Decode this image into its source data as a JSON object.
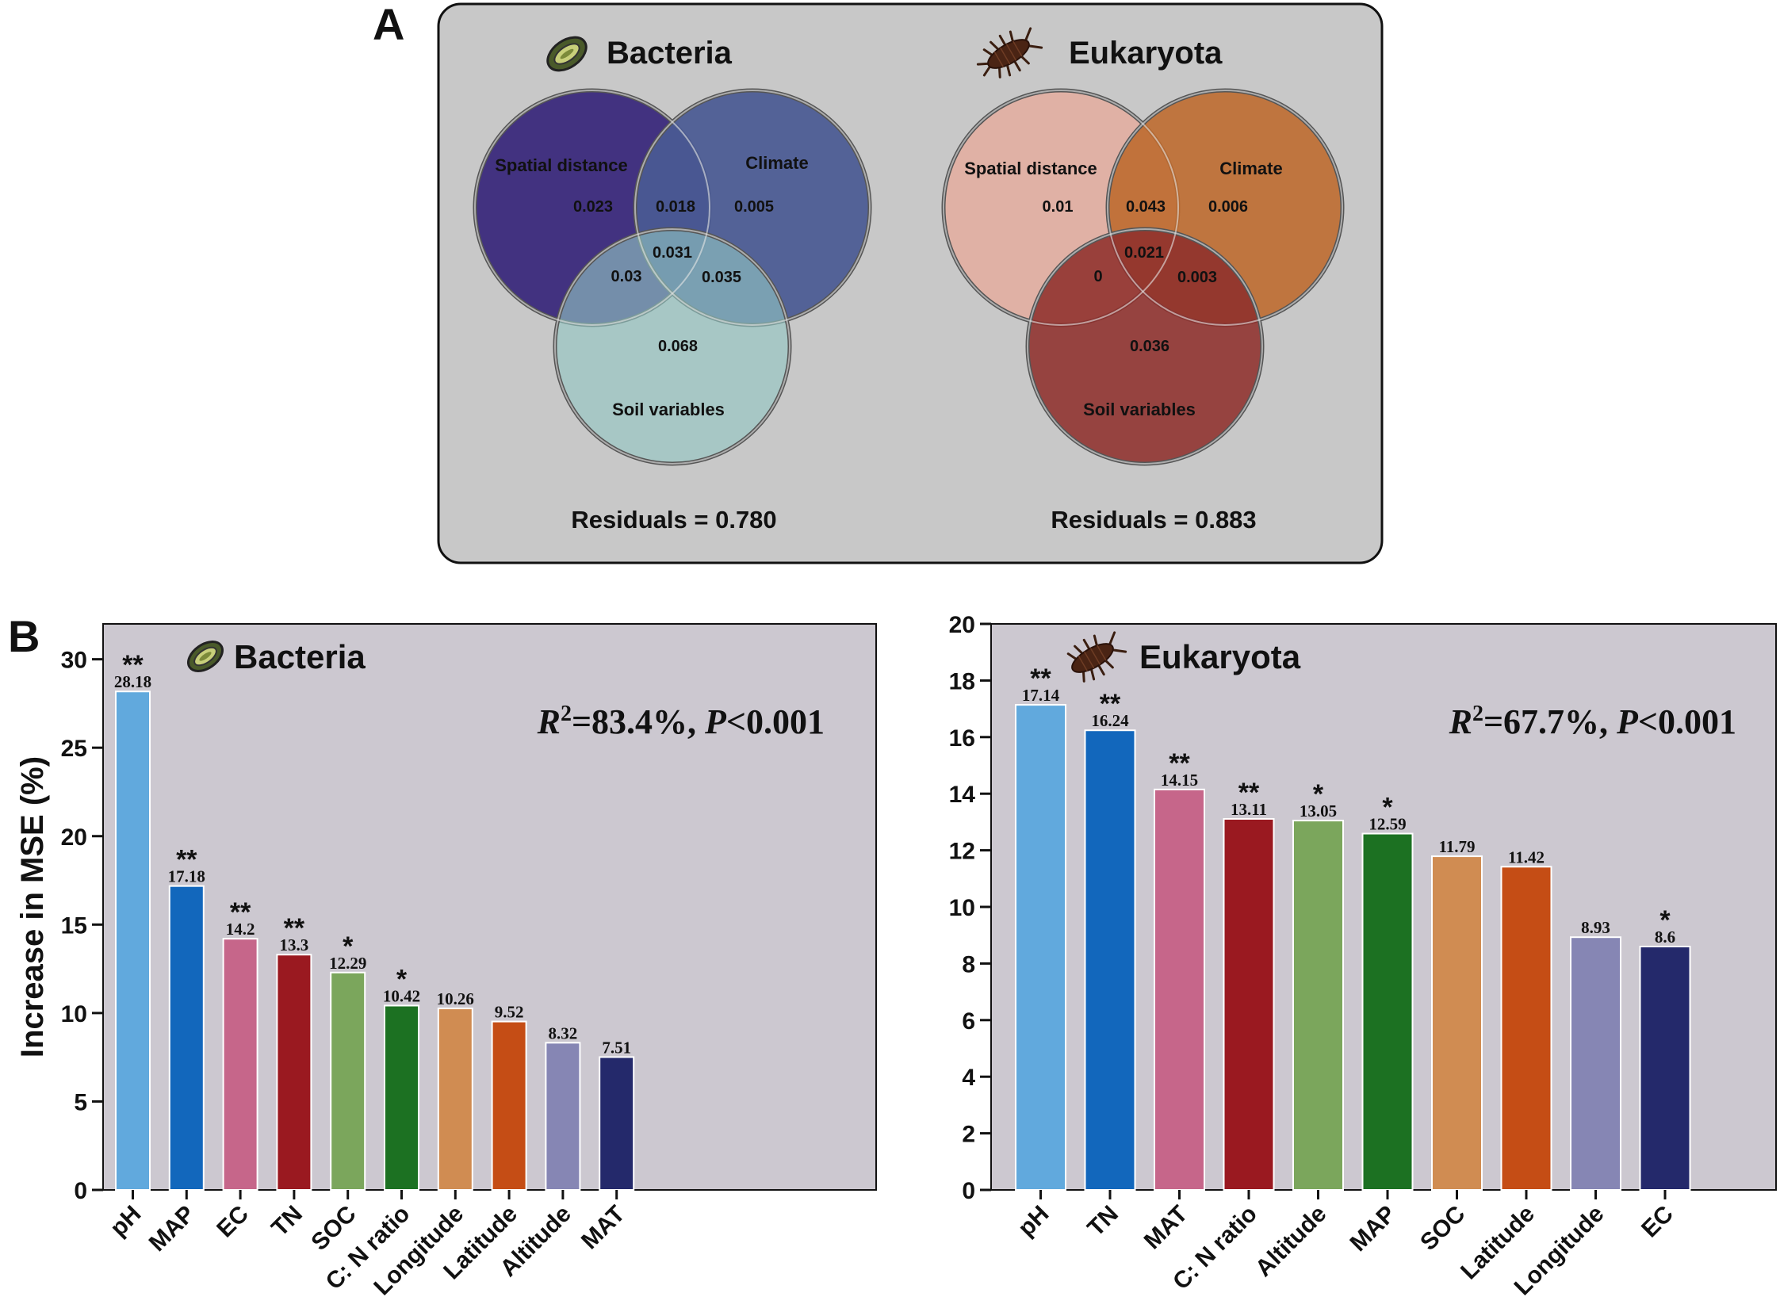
{
  "panel_a": {
    "label": "A",
    "bacteria": {
      "title": "Bacteria",
      "icon": "bacterium-icon",
      "circles": {
        "spatial": {
          "label": "Spatial distance",
          "color": "#3f2f7e"
        },
        "climate": {
          "label": "Climate",
          "color": "#4a5a93"
        },
        "soil": {
          "label": "Soil variables",
          "color": "#93c6c4"
        }
      },
      "values": {
        "spatial_only": "0.023",
        "spatial_climate": "0.018",
        "climate_only": "0.005",
        "all_three": "0.031",
        "spatial_soil": "0.03",
        "climate_soil": "0.035",
        "soil_only": "0.068"
      },
      "residuals": "Residuals = 0.780"
    },
    "eukaryota": {
      "title": "Eukaryota",
      "icon": "woodlouse-icon",
      "circles": {
        "spatial": {
          "label": "Spatial distance",
          "color": "#e2b0a3"
        },
        "climate": {
          "label": "Climate",
          "color": "#be6c30"
        },
        "soil": {
          "label": "Soil variables",
          "color": "#8e302c"
        }
      },
      "values": {
        "spatial_only": "0.01",
        "spatial_climate": "0.043",
        "climate_only": "0.006",
        "all_three": "0.021",
        "spatial_soil": "0",
        "climate_soil": "0.003",
        "soil_only": "0.036"
      },
      "residuals": "Residuals = 0.883"
    }
  },
  "panel_b": {
    "label": "B"
  },
  "chart_data": [
    {
      "type": "bar",
      "title": "Bacteria",
      "ylabel": "Increase in MSE (%)",
      "xlabel": "",
      "ylim": [
        0,
        32
      ],
      "yticks": [
        0,
        5,
        10,
        15,
        20,
        25,
        30
      ],
      "annotation": {
        "r2_label": "R",
        "r2_sup": "2",
        "r2_value": "=83.4%, ",
        "p_label": "P",
        "p_value": "<0.001"
      },
      "categories": [
        "pH",
        "MAP",
        "EC",
        "TN",
        "SOC",
        "C: N ratio",
        "Longitude",
        "Latitude",
        "Altitude",
        "MAT"
      ],
      "values": [
        28.18,
        17.18,
        14.2,
        13.3,
        12.29,
        10.42,
        10.26,
        9.52,
        8.32,
        7.51
      ],
      "value_labels": [
        "28.18",
        "17.18",
        "14.2",
        "13.3",
        "12.29",
        "10.42",
        "10.26",
        "9.52",
        "8.32",
        "7.51"
      ],
      "significance": [
        "**",
        "**",
        "**",
        "**",
        "*",
        "*",
        "",
        "",
        "",
        ""
      ],
      "colors": [
        "#61a9dd",
        "#1267bc",
        "#c6668a",
        "#9a1920",
        "#7ba65c",
        "#1c7122",
        "#d08c52",
        "#c54d15",
        "#8686b4",
        "#24296b"
      ]
    },
    {
      "type": "bar",
      "title": "Eukaryota",
      "ylabel": "",
      "xlabel": "",
      "ylim": [
        0,
        20
      ],
      "yticks": [
        0,
        2,
        4,
        6,
        8,
        10,
        12,
        14,
        16,
        18,
        20
      ],
      "annotation": {
        "r2_label": "R",
        "r2_sup": "2",
        "r2_value": "=67.7%, ",
        "p_label": "P",
        "p_value": "<0.001"
      },
      "categories": [
        "pH",
        "TN",
        "MAT",
        "C: N ratio",
        "Altitude",
        "MAP",
        "SOC",
        "Latitude",
        "Longitude",
        "EC"
      ],
      "values": [
        17.14,
        16.24,
        14.15,
        13.11,
        13.05,
        12.59,
        11.79,
        11.42,
        8.93,
        8.6
      ],
      "value_labels": [
        "17.14",
        "16.24",
        "14.15",
        "13.11",
        "13.05",
        "12.59",
        "11.79",
        "11.42",
        "8.93",
        "8.6"
      ],
      "significance": [
        "**",
        "**",
        "**",
        "**",
        "*",
        "*",
        "",
        "",
        "",
        "*"
      ],
      "colors": [
        "#61a9dd",
        "#1267bc",
        "#c6668a",
        "#9a1920",
        "#7ba65c",
        "#1c7122",
        "#d08c52",
        "#c54d15",
        "#8686b4",
        "#24296b"
      ]
    }
  ]
}
